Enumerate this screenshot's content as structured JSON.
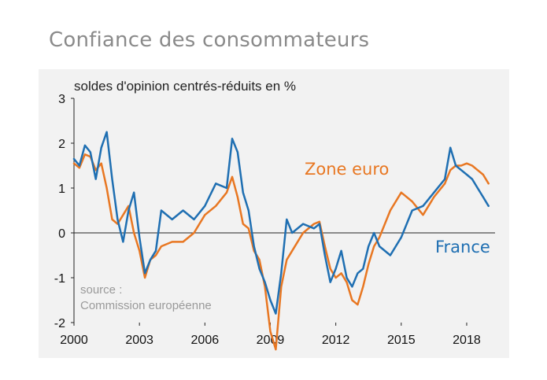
{
  "page": {
    "title": "Confiance des consommateurs"
  },
  "chart_data": {
    "type": "line",
    "subtitle": "soldes d'opinion centrés-réduits en %",
    "source_line1": "source :",
    "source_line2": "Commission européenne",
    "xlabel": "",
    "ylabel": "",
    "xlim": [
      2000,
      2019.3
    ],
    "ylim": [
      -2,
      3
    ],
    "x_ticks": [
      2000,
      2003,
      2006,
      2009,
      2012,
      2015,
      2018
    ],
    "x_tick_labels": [
      "2000",
      "2003",
      "2006",
      "2009",
      "2012",
      "2015",
      "2018"
    ],
    "y_ticks": [
      -2,
      -1,
      0,
      1,
      2,
      3
    ],
    "y_tick_labels": [
      "-2",
      "-1",
      "0",
      "1",
      "2",
      "3"
    ],
    "grid": false,
    "legend": "inline labels",
    "series": [
      {
        "name": "Zone euro",
        "color": "#e87722",
        "x": [
          2000,
          2000.25,
          2000.5,
          2000.75,
          2001,
          2001.25,
          2001.5,
          2001.75,
          2002,
          2002.25,
          2002.5,
          2002.75,
          2003,
          2003.25,
          2003.5,
          2003.75,
          2004,
          2004.5,
          2005,
          2005.5,
          2006,
          2006.5,
          2007,
          2007.25,
          2007.5,
          2007.75,
          2008,
          2008.25,
          2008.5,
          2008.75,
          2009,
          2009.25,
          2009.5,
          2009.75,
          2010,
          2010.5,
          2011,
          2011.25,
          2011.5,
          2011.75,
          2012,
          2012.25,
          2012.5,
          2012.75,
          2013,
          2013.25,
          2013.5,
          2013.75,
          2014,
          2014.5,
          2015,
          2015.5,
          2016,
          2016.5,
          2017,
          2017.25,
          2017.5,
          2017.75,
          2018,
          2018.25,
          2018.5,
          2018.75,
          2019
        ],
        "y": [
          1.55,
          1.45,
          1.75,
          1.7,
          1.4,
          1.55,
          1.0,
          0.3,
          0.2,
          0.4,
          0.6,
          0.0,
          -0.4,
          -1.0,
          -0.6,
          -0.5,
          -0.3,
          -0.2,
          -0.2,
          0.0,
          0.4,
          0.6,
          0.9,
          1.25,
          0.8,
          0.2,
          0.1,
          -0.4,
          -0.6,
          -1.2,
          -2.2,
          -2.6,
          -1.2,
          -0.6,
          -0.4,
          0.0,
          0.2,
          0.25,
          -0.3,
          -0.8,
          -1.0,
          -0.9,
          -1.1,
          -1.5,
          -1.6,
          -1.2,
          -0.7,
          -0.3,
          -0.1,
          0.5,
          0.9,
          0.7,
          0.4,
          0.8,
          1.1,
          1.4,
          1.5,
          1.5,
          1.55,
          1.5,
          1.4,
          1.3,
          1.1
        ]
      },
      {
        "name": "France",
        "color": "#1f6fb2",
        "x": [
          2000,
          2000.25,
          2000.5,
          2000.75,
          2001,
          2001.25,
          2001.5,
          2001.75,
          2002,
          2002.25,
          2002.5,
          2002.75,
          2003,
          2003.25,
          2003.5,
          2003.75,
          2004,
          2004.5,
          2005,
          2005.5,
          2006,
          2006.5,
          2007,
          2007.25,
          2007.5,
          2007.75,
          2008,
          2008.25,
          2008.5,
          2008.75,
          2009,
          2009.25,
          2009.5,
          2009.75,
          2010,
          2010.5,
          2011,
          2011.25,
          2011.5,
          2011.75,
          2012,
          2012.25,
          2012.5,
          2012.75,
          2013,
          2013.25,
          2013.5,
          2013.75,
          2014,
          2014.5,
          2015,
          2015.5,
          2016,
          2016.5,
          2017,
          2017.25,
          2017.5,
          2017.75,
          2018,
          2018.25,
          2018.5,
          2018.75,
          2019
        ],
        "y": [
          1.65,
          1.5,
          1.95,
          1.8,
          1.2,
          1.9,
          2.25,
          1.2,
          0.3,
          -0.2,
          0.5,
          0.9,
          -0.1,
          -0.9,
          -0.6,
          -0.4,
          0.5,
          0.3,
          0.5,
          0.3,
          0.6,
          1.1,
          1.0,
          2.1,
          1.8,
          0.9,
          0.5,
          -0.3,
          -0.8,
          -1.1,
          -1.5,
          -1.8,
          -0.9,
          0.3,
          0.0,
          0.2,
          0.1,
          0.2,
          -0.5,
          -1.1,
          -0.8,
          -0.4,
          -1.0,
          -1.2,
          -0.9,
          -0.8,
          -0.3,
          0.0,
          -0.3,
          -0.5,
          -0.1,
          0.5,
          0.6,
          0.9,
          1.2,
          1.9,
          1.5,
          1.4,
          1.3,
          1.2,
          1.0,
          0.8,
          0.6
        ]
      }
    ]
  }
}
